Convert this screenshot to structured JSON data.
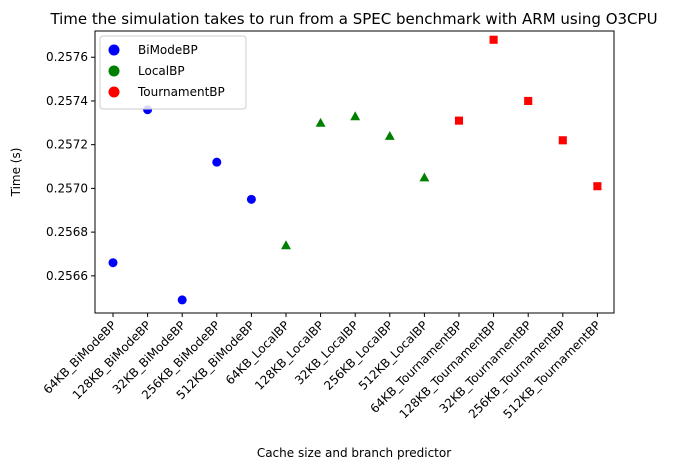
{
  "chart_data": {
    "type": "scatter",
    "title": "Time the simulation takes to run from a SPEC benchmark with ARM using O3CPU",
    "xlabel": "Cache size and branch predictor",
    "ylabel": "Time (s)",
    "categories": [
      "64KB_BiModeBP",
      "128KB_BiModeBP",
      "32KB_BiModeBP",
      "256KB_BiModeBP",
      "512KB_BiModeBP",
      "64KB_LocalBP",
      "128KB_LocalBP",
      "32KB_LocalBP",
      "256KB_LocalBP",
      "512KB_LocalBP",
      "64KB_TournamentBP",
      "128KB_TournamentBP",
      "32KB_TournamentBP",
      "256KB_TournamentBP",
      "512KB_TournamentBP"
    ],
    "ylim": [
      0.25643,
      0.25772
    ],
    "yticks": [
      "0.2566",
      "0.2568",
      "0.2570",
      "0.2572",
      "0.2574",
      "0.2576"
    ],
    "grid": false,
    "legend_position": "top-left",
    "series": [
      {
        "name": "BiModeBP",
        "color": "#0000ff",
        "marker": "circle",
        "x": [
          "64KB_BiModeBP",
          "128KB_BiModeBP",
          "32KB_BiModeBP",
          "256KB_BiModeBP",
          "512KB_BiModeBP"
        ],
        "values": [
          0.25666,
          0.25736,
          0.25649,
          0.25712,
          0.25695
        ]
      },
      {
        "name": "LocalBP",
        "color": "#008000",
        "marker": "triangle",
        "x": [
          "64KB_LocalBP",
          "128KB_LocalBP",
          "32KB_LocalBP",
          "256KB_LocalBP",
          "512KB_LocalBP"
        ],
        "values": [
          0.25674,
          0.2573,
          0.25733,
          0.25724,
          0.25705
        ]
      },
      {
        "name": "TournamentBP",
        "color": "#ff0000",
        "marker": "square",
        "x": [
          "64KB_TournamentBP",
          "128KB_TournamentBP",
          "32KB_TournamentBP",
          "256KB_TournamentBP",
          "512KB_TournamentBP"
        ],
        "values": [
          0.25731,
          0.25768,
          0.2574,
          0.25722,
          0.25701
        ]
      }
    ]
  }
}
